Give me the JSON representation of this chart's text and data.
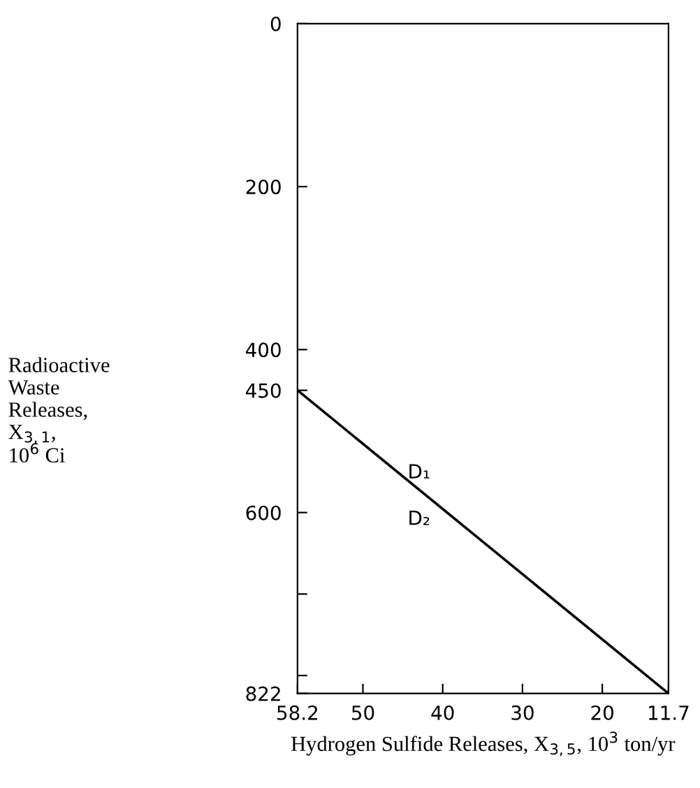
{
  "chart_data": {
    "type": "line",
    "xlabel": "Hydrogen Sulfide Releases, X$_{3,5}$, 10$^{3}$ ton/yr",
    "ylabel": "Radioactive\nWaste\nReleases,\nX$_{3,1}$,\n10$^{6}$ Ci",
    "x": [
      58.2,
      11.7
    ],
    "series": [
      {
        "color": "#000000",
        "values": [
          450,
          822
        ]
      }
    ],
    "xlim": [
      58.2,
      11.7
    ],
    "xticks": [
      58.2,
      50,
      40,
      30,
      20,
      11.7
    ],
    "ylim": [
      822,
      0
    ],
    "yticks": [
      0,
      200,
      400,
      450,
      600,
      {
        "value": 700,
        "label": null
      },
      {
        "value": 800,
        "label": null
      },
      822
    ],
    "annotations": [
      {
        "text": "D₁",
        "x": 42,
        "y": 580
      },
      {
        "text": "D₂",
        "x": 42,
        "y": 580
      }
    ],
    "grid": false
  }
}
